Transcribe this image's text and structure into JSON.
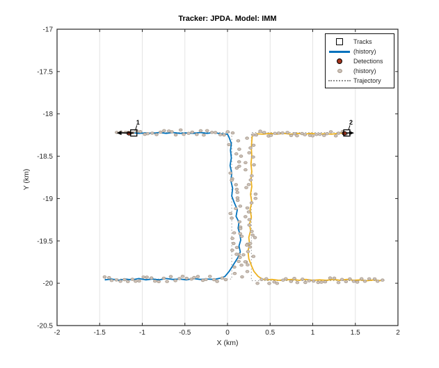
{
  "chart_data": {
    "type": "scatter",
    "title": "Tracker: JPDA. Model: IMM",
    "xlabel": "X (km)",
    "ylabel": "Y (km)",
    "xlim": [
      -2,
      2
    ],
    "ylim": [
      -20.5,
      -17
    ],
    "xticks": [
      -2,
      -1.5,
      -1,
      -0.5,
      0,
      0.5,
      1,
      1.5,
      2
    ],
    "xtick_labels": [
      "-2",
      "-1.5",
      "-1",
      "-0.5",
      "0",
      "0.5",
      "1",
      "1.5",
      "2"
    ],
    "yticks": [
      -17,
      -17.5,
      -18,
      -18.5,
      -19,
      -19.5,
      -20,
      -20.5
    ],
    "ytick_labels": [
      "-17",
      "-17.5",
      "-18",
      "-18.5",
      "-19",
      "-19.5",
      "-20",
      "-20.5"
    ],
    "grid": true,
    "legend": {
      "position": "top-right",
      "entries": [
        {
          "label": "Tracks",
          "marker": "open-square"
        },
        {
          "label": "(history)",
          "marker": "blue-line"
        },
        {
          "label": "Detections",
          "marker": "red-dot"
        },
        {
          "label": "(history)",
          "marker": "gray-dot"
        },
        {
          "label": "Trajectory",
          "marker": "dotted-line"
        }
      ]
    },
    "colors": {
      "track1": "#0072BD",
      "track2": "#EDB120",
      "detection_history_fill": "#CDC1B9",
      "detection_history_edge": "#A49889",
      "detection_current_fill": "#A3341C",
      "trajectory": "#909090",
      "grid": "#E3E3E3",
      "axis": "#262626",
      "marker": "#000000"
    },
    "tracks": [
      {
        "id": "1",
        "label": "1",
        "color_key": "track1",
        "head": [
          -1.1,
          -18.225
        ],
        "velocity_tip": [
          -1.285,
          -18.225
        ],
        "points": [
          [
            -1.44,
            -19.96
          ],
          [
            -1.36,
            -19.95
          ],
          [
            -1.28,
            -19.965
          ],
          [
            -1.2,
            -19.95
          ],
          [
            -1.12,
            -19.96
          ],
          [
            -1.04,
            -19.945
          ],
          [
            -0.96,
            -19.96
          ],
          [
            -0.88,
            -19.95
          ],
          [
            -0.8,
            -19.96
          ],
          [
            -0.72,
            -19.945
          ],
          [
            -0.64,
            -19.955
          ],
          [
            -0.56,
            -19.95
          ],
          [
            -0.48,
            -19.96
          ],
          [
            -0.4,
            -19.945
          ],
          [
            -0.32,
            -19.955
          ],
          [
            -0.24,
            -19.95
          ],
          [
            -0.16,
            -19.955
          ],
          [
            -0.08,
            -19.94
          ],
          [
            -0.03,
            -19.92
          ],
          [
            0.02,
            -19.86
          ],
          [
            0.07,
            -19.78
          ],
          [
            0.12,
            -19.7
          ],
          [
            0.15,
            -19.63
          ],
          [
            0.135,
            -19.56
          ],
          [
            0.155,
            -19.49
          ],
          [
            0.145,
            -19.42
          ],
          [
            0.125,
            -19.35
          ],
          [
            0.135,
            -19.28
          ],
          [
            0.1,
            -19.21
          ],
          [
            0.115,
            -19.13
          ],
          [
            0.08,
            -19.05
          ],
          [
            0.05,
            -18.97
          ],
          [
            0.06,
            -18.88
          ],
          [
            0.04,
            -18.79
          ],
          [
            0.05,
            -18.7
          ],
          [
            0.03,
            -18.61
          ],
          [
            0.045,
            -18.52
          ],
          [
            0.035,
            -18.43
          ],
          [
            0.045,
            -18.35
          ],
          [
            0.02,
            -18.28
          ],
          [
            0.0,
            -18.24
          ],
          [
            -0.08,
            -18.235
          ],
          [
            -0.16,
            -18.22
          ],
          [
            -0.24,
            -18.23
          ],
          [
            -0.32,
            -18.22
          ],
          [
            -0.4,
            -18.23
          ],
          [
            -0.48,
            -18.225
          ],
          [
            -0.56,
            -18.23
          ],
          [
            -0.64,
            -18.22
          ],
          [
            -0.72,
            -18.23
          ],
          [
            -0.8,
            -18.22
          ],
          [
            -0.88,
            -18.23
          ],
          [
            -0.96,
            -18.225
          ],
          [
            -1.04,
            -18.23
          ],
          [
            -1.1,
            -18.225
          ]
        ]
      },
      {
        "id": "2",
        "label": "2",
        "color_key": "track2",
        "head": [
          1.4,
          -18.225
        ],
        "velocity_tip": [
          1.47,
          -18.225
        ],
        "points": [
          [
            1.8,
            -19.97
          ],
          [
            1.72,
            -19.96
          ],
          [
            1.64,
            -19.97
          ],
          [
            1.56,
            -19.96
          ],
          [
            1.48,
            -19.965
          ],
          [
            1.4,
            -19.955
          ],
          [
            1.32,
            -19.965
          ],
          [
            1.24,
            -19.955
          ],
          [
            1.16,
            -19.965
          ],
          [
            1.08,
            -19.96
          ],
          [
            1.0,
            -19.965
          ],
          [
            0.92,
            -19.955
          ],
          [
            0.84,
            -19.965
          ],
          [
            0.76,
            -19.955
          ],
          [
            0.68,
            -19.96
          ],
          [
            0.6,
            -19.965
          ],
          [
            0.52,
            -19.955
          ],
          [
            0.46,
            -19.96
          ],
          [
            0.41,
            -19.95
          ],
          [
            0.36,
            -19.92
          ],
          [
            0.31,
            -19.86
          ],
          [
            0.28,
            -19.79
          ],
          [
            0.25,
            -19.71
          ],
          [
            0.24,
            -19.62
          ],
          [
            0.26,
            -19.54
          ],
          [
            0.25,
            -19.46
          ],
          [
            0.27,
            -19.38
          ],
          [
            0.26,
            -19.3
          ],
          [
            0.28,
            -19.22
          ],
          [
            0.265,
            -19.13
          ],
          [
            0.285,
            -19.04
          ],
          [
            0.27,
            -18.95
          ],
          [
            0.285,
            -18.86
          ],
          [
            0.275,
            -18.77
          ],
          [
            0.285,
            -18.68
          ],
          [
            0.275,
            -18.59
          ],
          [
            0.285,
            -18.5
          ],
          [
            0.28,
            -18.41
          ],
          [
            0.285,
            -18.32
          ],
          [
            0.29,
            -18.26
          ],
          [
            0.34,
            -18.235
          ],
          [
            0.42,
            -18.24
          ],
          [
            0.5,
            -18.23
          ],
          [
            0.58,
            -18.24
          ],
          [
            0.66,
            -18.23
          ],
          [
            0.74,
            -18.24
          ],
          [
            0.82,
            -18.23
          ],
          [
            0.9,
            -18.24
          ],
          [
            0.98,
            -18.23
          ],
          [
            1.06,
            -18.24
          ],
          [
            1.14,
            -18.235
          ],
          [
            1.22,
            -18.24
          ],
          [
            1.3,
            -18.23
          ],
          [
            1.4,
            -18.225
          ]
        ]
      }
    ],
    "trajectories": [
      {
        "points": [
          [
            -1.44,
            -19.95
          ],
          [
            0.05,
            -19.95
          ],
          [
            0.05,
            -18.22
          ],
          [
            -1.26,
            -18.22
          ]
        ]
      },
      {
        "points": [
          [
            1.84,
            -19.97
          ],
          [
            0.28,
            -19.97
          ],
          [
            0.28,
            -18.22
          ],
          [
            1.46,
            -18.22
          ]
        ]
      }
    ],
    "current_detections": [
      [
        -1.155,
        -18.23
      ],
      [
        1.372,
        -18.23
      ]
    ],
    "detection_bands": [
      {
        "orient": "h",
        "y": -18.22,
        "x0": -1.3,
        "x1": 0.05,
        "n": 30,
        "jx": 0.012,
        "jy": 0.032,
        "seed": 11
      },
      {
        "orient": "h",
        "y": -18.23,
        "x0": 0.3,
        "x1": 1.4,
        "n": 26,
        "jx": 0.012,
        "jy": 0.032,
        "seed": 22
      },
      {
        "orient": "v",
        "x": 0.09,
        "y0": -18.32,
        "y1": -19.8,
        "n": 32,
        "jx": 0.075,
        "jy": 0.02,
        "seed": 33
      },
      {
        "orient": "v",
        "x": 0.27,
        "y0": -18.3,
        "y1": -19.85,
        "n": 30,
        "jx": 0.06,
        "jy": 0.02,
        "seed": 44
      },
      {
        "orient": "h",
        "y": -19.95,
        "x0": -1.44,
        "x1": -0.02,
        "n": 32,
        "jx": 0.012,
        "jy": 0.032,
        "seed": 55
      },
      {
        "orient": "h",
        "y": -19.97,
        "x0": 0.36,
        "x1": 1.81,
        "n": 32,
        "jx": 0.012,
        "jy": 0.032,
        "seed": 66
      },
      {
        "orient": "v",
        "x": 0.17,
        "y0": -19.4,
        "y1": -19.92,
        "n": 10,
        "jx": 0.1,
        "jy": 0.03,
        "seed": 77
      }
    ]
  }
}
